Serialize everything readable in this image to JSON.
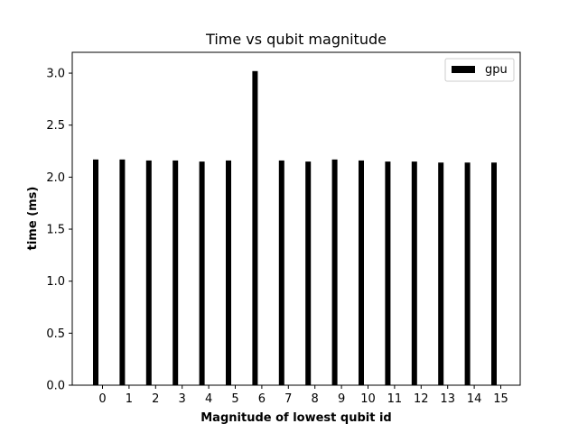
{
  "chart_data": {
    "type": "bar",
    "title": "Time vs qubit magnitude",
    "xlabel": "Magnitude of lowest qubit id",
    "ylabel": "time (ms)",
    "categories": [
      "0",
      "1",
      "2",
      "3",
      "4",
      "5",
      "6",
      "7",
      "8",
      "9",
      "10",
      "11",
      "12",
      "13",
      "14",
      "15"
    ],
    "series": [
      {
        "name": "gpu",
        "color": "#000000",
        "values": [
          2.17,
          2.17,
          2.16,
          2.16,
          2.15,
          2.16,
          3.02,
          2.16,
          2.15,
          2.17,
          2.16,
          2.15,
          2.15,
          2.14,
          2.14,
          2.14
        ]
      }
    ],
    "yticks": [
      "0.0",
      "0.5",
      "1.0",
      "1.5",
      "2.0",
      "2.5",
      "3.0"
    ],
    "ylim": [
      0,
      3.2
    ],
    "grid": false,
    "legend_position": "top-right"
  }
}
